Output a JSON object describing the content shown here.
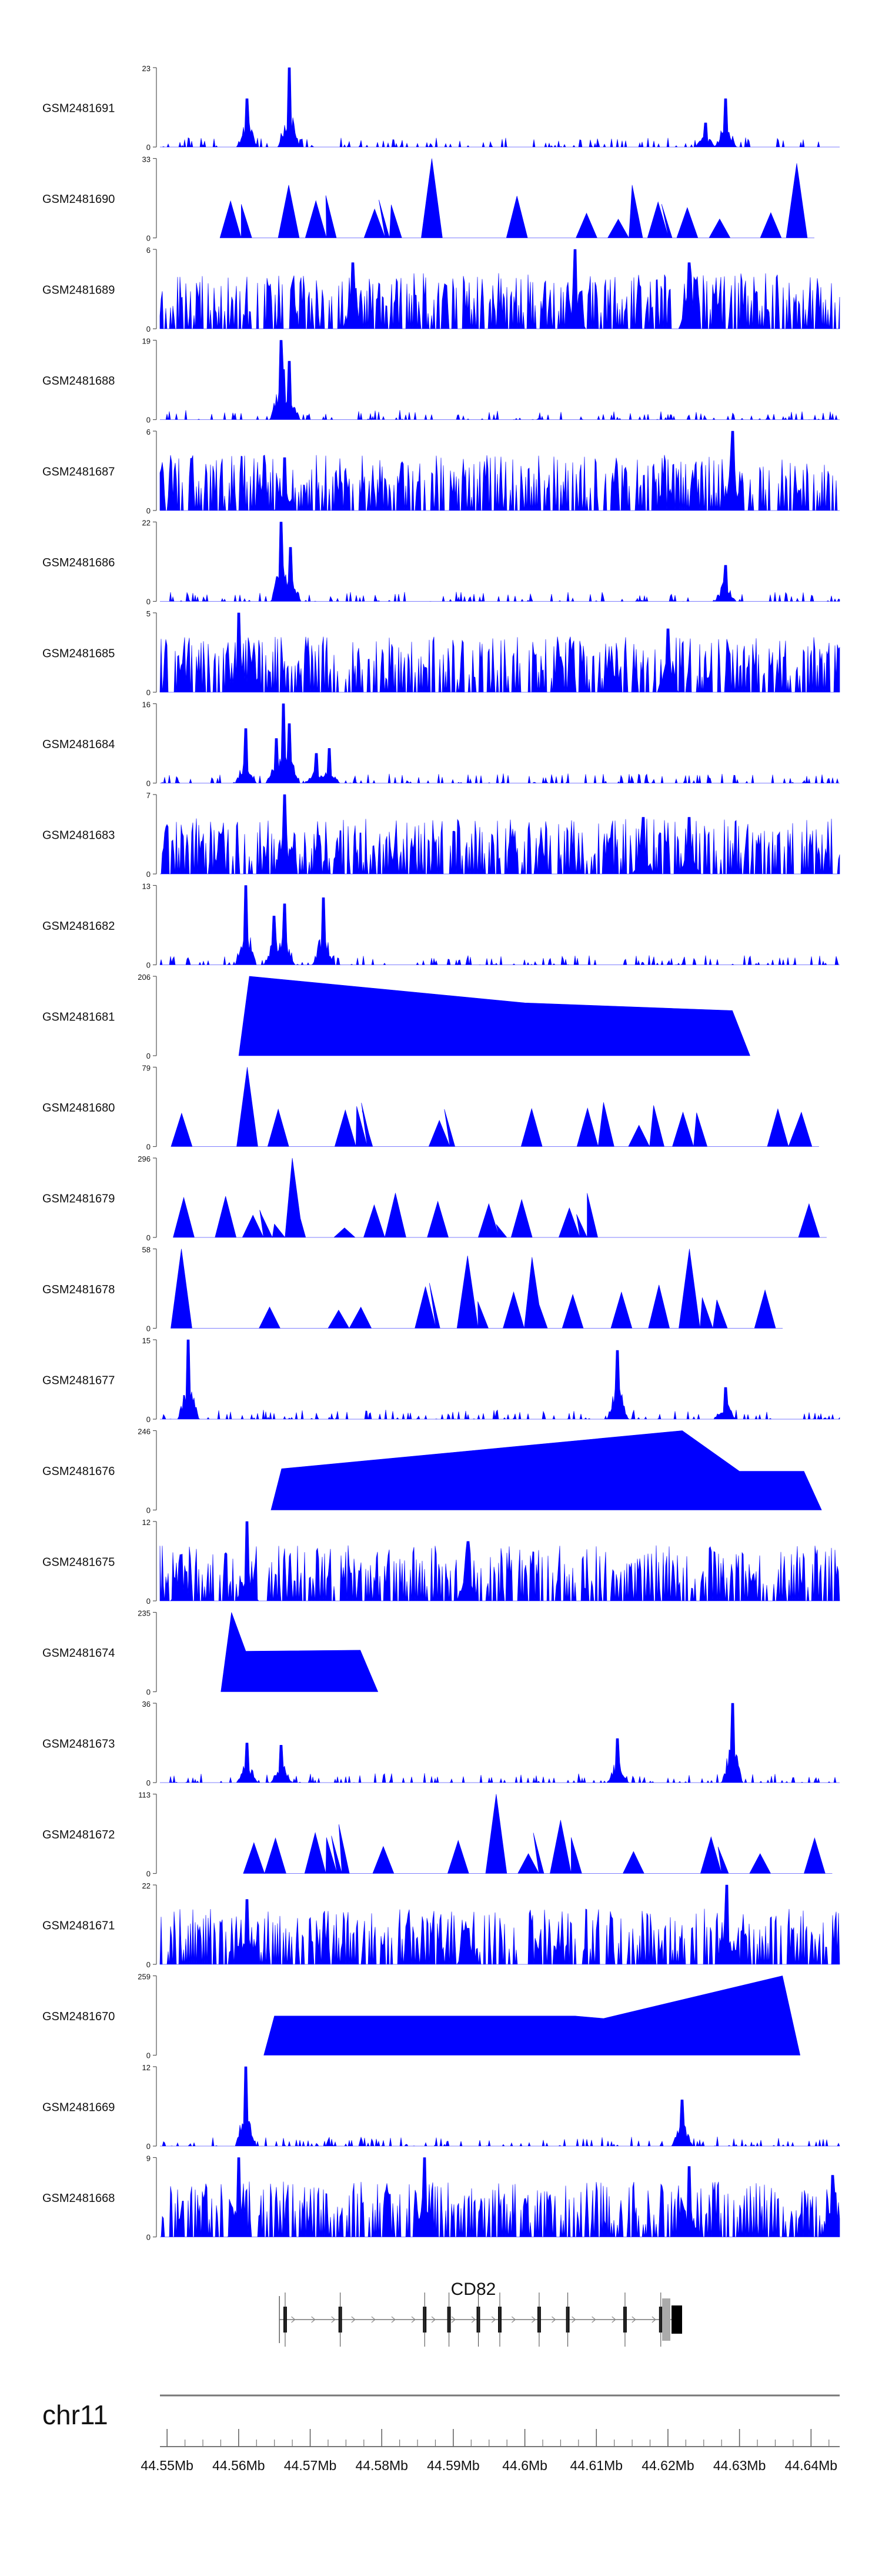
{
  "chart_data": {
    "type": "area",
    "title": "",
    "xlabel": "",
    "ylabel": "",
    "x_range_mb": [
      44.549,
      44.644
    ],
    "tracks": [
      {
        "name": "GSM2481691",
        "max": 23,
        "pattern": "dense",
        "peaks": [
          [
            44.567,
            23
          ],
          [
            44.5612,
            14
          ],
          [
            44.6281,
            14
          ],
          [
            44.6252,
            7
          ]
        ]
      },
      {
        "name": "GSM2481690",
        "max": 33,
        "pattern": "sparse",
        "peaks": [
          [
            44.587,
            33
          ],
          [
            44.615,
            22
          ],
          [
            44.638,
            31
          ],
          [
            44.567,
            22
          ],
          [
            44.579,
            12
          ]
        ]
      },
      {
        "name": "GSM2481689",
        "max": 6,
        "pattern": "noisy",
        "peaks": [
          [
            44.607,
            6
          ],
          [
            44.576,
            5
          ],
          [
            44.623,
            5
          ]
        ]
      },
      {
        "name": "GSM2481688",
        "max": 19,
        "pattern": "dense",
        "peaks": [
          [
            44.5659,
            19
          ],
          [
            44.5671,
            14
          ],
          [
            44.5663,
            12
          ]
        ]
      },
      {
        "name": "GSM2481687",
        "max": 6,
        "pattern": "noisy",
        "peaks": [
          [
            44.629,
            6
          ],
          [
            44.5665,
            4
          ]
        ]
      },
      {
        "name": "GSM2481686",
        "max": 22,
        "pattern": "dense",
        "peaks": [
          [
            44.566,
            22
          ],
          [
            44.5672,
            15
          ],
          [
            44.628,
            10
          ]
        ]
      },
      {
        "name": "GSM2481685",
        "max": 5,
        "pattern": "noisy",
        "peaks": [
          [
            44.56,
            5
          ],
          [
            44.62,
            4
          ]
        ]
      },
      {
        "name": "GSM2481684",
        "max": 16,
        "pattern": "dense",
        "peaks": [
          [
            44.5663,
            16
          ],
          [
            44.567,
            12
          ],
          [
            44.561,
            11
          ],
          [
            44.5653,
            9
          ],
          [
            44.5726,
            7
          ],
          [
            44.5709,
            6
          ]
        ]
      },
      {
        "name": "GSM2481683",
        "max": 7,
        "pattern": "noisy",
        "peaks": [
          [
            44.5665,
            7
          ],
          [
            44.6165,
            5
          ],
          [
            44.623,
            5
          ]
        ]
      },
      {
        "name": "GSM2481682",
        "max": 13,
        "pattern": "dense",
        "peaks": [
          [
            44.561,
            13
          ],
          [
            44.5718,
            11
          ],
          [
            44.5664,
            10
          ],
          [
            44.565,
            8
          ]
        ]
      },
      {
        "name": "GSM2481681",
        "max": 206,
        "pattern": "wide",
        "peaks": [
          [
            44.5615,
            206
          ],
          [
            44.6,
            137
          ],
          [
            44.629,
            117
          ]
        ]
      },
      {
        "name": "GSM2481680",
        "max": 79,
        "pattern": "sparse",
        "peaks": [
          [
            44.5612,
            79
          ],
          [
            44.5765,
            40
          ],
          [
            44.611,
            44
          ],
          [
            44.618,
            41
          ]
        ]
      },
      {
        "name": "GSM2481679",
        "max": 296,
        "pattern": "sparse",
        "peaks": [
          [
            44.5675,
            296
          ],
          [
            44.562,
            83
          ],
          [
            44.565,
            50
          ],
          [
            44.596,
            49
          ],
          [
            44.5748,
            36
          ]
        ]
      },
      {
        "name": "GSM2481678",
        "max": 58,
        "pattern": "sparse",
        "peaks": [
          [
            44.552,
            58
          ],
          [
            44.623,
            58
          ],
          [
            44.592,
            53
          ],
          [
            44.601,
            52
          ]
        ]
      },
      {
        "name": "GSM2481677",
        "max": 15,
        "pattern": "dense",
        "peaks": [
          [
            44.553,
            15
          ],
          [
            44.613,
            13
          ],
          [
            44.628,
            6
          ]
        ]
      },
      {
        "name": "GSM2481676",
        "max": 246,
        "pattern": "wide",
        "peaks": [
          [
            44.622,
            246
          ],
          [
            44.566,
            128
          ],
          [
            44.63,
            120
          ],
          [
            44.639,
            120
          ]
        ]
      },
      {
        "name": "GSM2481675",
        "max": 12,
        "pattern": "noisy",
        "peaks": [
          [
            44.5612,
            12
          ],
          [
            44.592,
            9
          ],
          [
            44.552,
            7
          ]
        ]
      },
      {
        "name": "GSM2481674",
        "max": 235,
        "pattern": "wide",
        "peaks": [
          [
            44.559,
            235
          ],
          [
            44.577,
            123
          ],
          [
            44.561,
            120
          ]
        ]
      },
      {
        "name": "GSM2481673",
        "max": 36,
        "pattern": "dense",
        "peaks": [
          [
            44.629,
            36
          ],
          [
            44.613,
            20
          ],
          [
            44.5612,
            18
          ],
          [
            44.566,
            17
          ]
        ]
      },
      {
        "name": "GSM2481672",
        "max": 113,
        "pattern": "sparse",
        "peaks": [
          [
            44.596,
            113
          ],
          [
            44.605,
            76
          ],
          [
            44.574,
            70
          ],
          [
            44.627,
            38
          ]
        ]
      },
      {
        "name": "GSM2481671",
        "max": 22,
        "pattern": "noisy",
        "peaks": [
          [
            44.6282,
            22
          ],
          [
            44.5612,
            18
          ],
          [
            44.592,
            10
          ]
        ]
      },
      {
        "name": "GSM2481670",
        "max": 259,
        "pattern": "wide",
        "peaks": [
          [
            44.636,
            259
          ],
          [
            44.565,
            128
          ],
          [
            44.607,
            128
          ],
          [
            44.611,
            120
          ]
        ]
      },
      {
        "name": "GSM2481669",
        "max": 12,
        "pattern": "dense",
        "peaks": [
          [
            44.561,
            12
          ],
          [
            44.622,
            7
          ]
        ]
      },
      {
        "name": "GSM2481668",
        "max": 9,
        "pattern": "noisy",
        "peaks": [
          [
            44.56,
            9
          ],
          [
            44.586,
            9
          ],
          [
            44.623,
            8
          ],
          [
            44.643,
            7
          ]
        ]
      }
    ],
    "gene": {
      "name": "CD82",
      "start_mb": 44.5657,
      "end_mb": 44.6205,
      "exons_mb": [
        44.5665,
        44.5742,
        44.586,
        44.5894,
        44.5935,
        44.5965,
        44.602,
        44.606,
        44.614,
        44.619
      ]
    },
    "chromosome": "chr11",
    "axis_ticks": [
      {
        "label": "44.55Mb",
        "value": 44.55
      },
      {
        "label": "44.56Mb",
        "value": 44.56
      },
      {
        "label": "44.57Mb",
        "value": 44.57
      },
      {
        "label": "44.58Mb",
        "value": 44.58
      },
      {
        "label": "44.59Mb",
        "value": 44.59
      },
      {
        "label": "44.6Mb",
        "value": 44.6
      },
      {
        "label": "44.61Mb",
        "value": 44.61
      },
      {
        "label": "44.62Mb",
        "value": 44.62
      },
      {
        "label": "44.63Mb",
        "value": 44.63
      },
      {
        "label": "44.64Mb",
        "value": 44.64
      }
    ],
    "track_color": "#0000ff"
  }
}
